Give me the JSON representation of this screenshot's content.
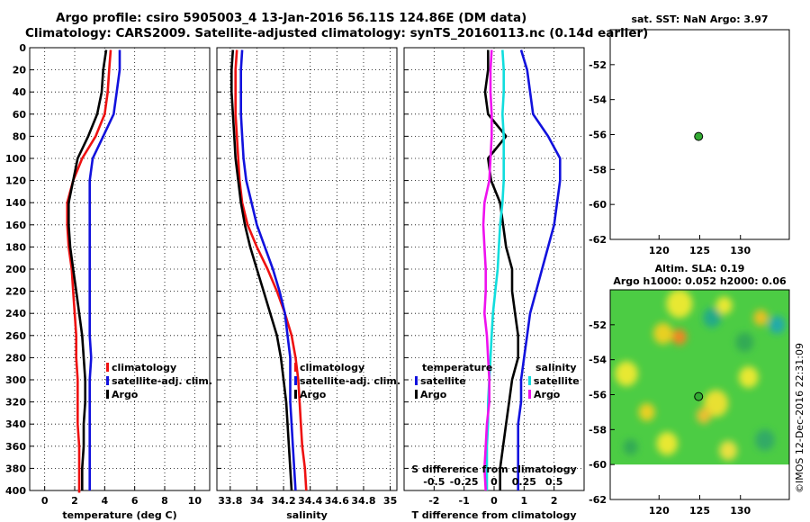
{
  "titles": {
    "line1": "Argo profile: csiro 5905003_4 13-Jan-2016 56.11S 124.86E (DM data)",
    "line2": "Climatology: CARS2009. Satellite-adjusted climatology: synTS_20160113.nc (0.14d earlier)"
  },
  "side_label": "©IMOS 12-Dec-2016 22:31:09",
  "colors": {
    "red": "#ee1111",
    "blue": "#1111dd",
    "black": "#000000",
    "magenta": "#ee11ee",
    "cyan": "#11dddd"
  },
  "chart_data": [
    {
      "type": "line",
      "id": "temperature",
      "xlabel": "temperature (deg C)",
      "ylabel": "",
      "xlim": [
        -1,
        11
      ],
      "ylim": [
        0,
        400
      ],
      "y_inverted": true,
      "xticks": [
        0,
        2,
        4,
        6,
        8,
        10
      ],
      "xtick_labels": [
        "0",
        "2",
        "4",
        "6",
        "8",
        "10"
      ],
      "yticks": [
        0,
        20,
        40,
        60,
        80,
        100,
        120,
        140,
        160,
        180,
        200,
        220,
        240,
        260,
        280,
        300,
        320,
        340,
        360,
        380,
        400
      ],
      "ytick_labels": [
        "0",
        "20",
        "40",
        "60",
        "80",
        "100",
        "120",
        "140",
        "160",
        "180",
        "200",
        "220",
        "240",
        "260",
        "280",
        "300",
        "320",
        "340",
        "360",
        "380",
        "400"
      ],
      "grid": true,
      "legend": [
        "climatology",
        "satellite-adj. clim.",
        "Argo"
      ],
      "series": [
        {
          "name": "climatology",
          "color": "red",
          "x": [
            4.4,
            4.3,
            4.2,
            4.0,
            3.4,
            2.5,
            1.9,
            1.5,
            1.5,
            1.6,
            1.8,
            1.9,
            2.0,
            2.1,
            2.1,
            2.2,
            2.2,
            2.2,
            2.3,
            2.3,
            2.3,
            2.3
          ],
          "y": [
            2,
            20,
            40,
            60,
            80,
            100,
            120,
            140,
            160,
            180,
            200,
            220,
            240,
            260,
            280,
            300,
            320,
            340,
            360,
            380,
            400,
            402
          ]
        },
        {
          "name": "satellite-adj. clim.",
          "color": "blue",
          "x": [
            5.0,
            5.0,
            4.8,
            4.6,
            3.9,
            3.2,
            3.0,
            3.0,
            3.0,
            3.0,
            3.0,
            3.0,
            3.0,
            3.0,
            3.1,
            3.0,
            3.0,
            3.0,
            3.0,
            3.0,
            3.0
          ],
          "y": [
            2,
            20,
            40,
            60,
            80,
            100,
            120,
            140,
            160,
            180,
            200,
            220,
            240,
            260,
            280,
            300,
            320,
            340,
            360,
            380,
            400
          ]
        },
        {
          "name": "Argo",
          "color": "black",
          "x": [
            4.1,
            3.9,
            3.8,
            3.5,
            2.9,
            2.2,
            1.9,
            1.6,
            1.6,
            1.7,
            1.9,
            2.1,
            2.3,
            2.5,
            2.6,
            2.7,
            2.7,
            2.6,
            2.6,
            2.5,
            2.5
          ],
          "y": [
            2,
            20,
            40,
            60,
            80,
            100,
            120,
            140,
            160,
            180,
            200,
            220,
            240,
            260,
            280,
            300,
            320,
            340,
            360,
            380,
            400
          ]
        }
      ]
    },
    {
      "type": "line",
      "id": "salinity",
      "xlabel": "salinity",
      "ylabel": "",
      "xlim": [
        33.7,
        35.05
      ],
      "ylim": [
        0,
        400
      ],
      "y_inverted": true,
      "xticks": [
        33.8,
        34,
        34.2,
        34.4,
        34.6,
        34.8,
        35
      ],
      "xtick_labels": [
        "33.8",
        "34",
        "34.2",
        "34.4",
        "34.6",
        "34.8",
        "35"
      ],
      "grid": true,
      "legend": [
        "climatology",
        "satellite-adj. clim.",
        "Argo"
      ],
      "series": [
        {
          "name": "climatology",
          "color": "red",
          "x": [
            33.85,
            33.84,
            33.84,
            33.84,
            33.85,
            33.86,
            33.87,
            33.89,
            33.93,
            34.0,
            34.08,
            34.15,
            34.21,
            34.26,
            34.29,
            34.31,
            34.32,
            34.33,
            34.34,
            34.36,
            34.37
          ],
          "y": [
            2,
            20,
            40,
            60,
            80,
            100,
            120,
            140,
            160,
            180,
            200,
            220,
            240,
            260,
            280,
            300,
            320,
            340,
            360,
            380,
            400
          ]
        },
        {
          "name": "satellite-adj. clim.",
          "color": "blue",
          "x": [
            33.89,
            33.88,
            33.88,
            33.88,
            33.89,
            33.9,
            33.92,
            33.96,
            34.0,
            34.06,
            34.12,
            34.17,
            34.21,
            34.23,
            34.25,
            34.25,
            34.25,
            34.26,
            34.27,
            34.28,
            34.29
          ],
          "y": [
            2,
            20,
            40,
            60,
            80,
            100,
            120,
            140,
            160,
            180,
            200,
            220,
            240,
            260,
            280,
            300,
            320,
            340,
            360,
            380,
            400
          ]
        },
        {
          "name": "Argo",
          "color": "black",
          "x": [
            33.82,
            33.81,
            33.81,
            33.82,
            33.83,
            33.84,
            33.86,
            33.88,
            33.91,
            33.95,
            34.0,
            34.05,
            34.1,
            34.15,
            34.18,
            34.2,
            34.22,
            34.23,
            34.24,
            34.25,
            34.26
          ],
          "y": [
            2,
            20,
            40,
            60,
            80,
            100,
            120,
            140,
            160,
            180,
            200,
            220,
            240,
            260,
            280,
            300,
            320,
            340,
            360,
            380,
            400
          ]
        }
      ]
    },
    {
      "type": "line",
      "id": "difference",
      "xlabel": "T difference from climatology",
      "top_axis_label": "S difference from climatology",
      "xlim": [
        -3,
        3
      ],
      "ylim": [
        0,
        400
      ],
      "y_inverted": true,
      "xticks": [
        -2,
        -1,
        0,
        1,
        2
      ],
      "xtick_labels": [
        "-2",
        "-1",
        "0",
        "1",
        "2"
      ],
      "s_ticks": [
        -0.5,
        -0.25,
        0,
        0.25,
        0.5
      ],
      "s_tick_labels": [
        "-0.5",
        "-0.25",
        "0",
        "0.25",
        "0.5"
      ],
      "s_xlim": [
        -0.75,
        0.75
      ],
      "grid": true,
      "legend_temperature": {
        "title": "temperature",
        "entries": [
          "satellite",
          "Argo"
        ]
      },
      "legend_salinity": {
        "title": "salinity",
        "entries": [
          "satellite",
          "Argo"
        ]
      },
      "series": [
        {
          "name": "T satellite",
          "color": "blue",
          "x": [
            0.9,
            1.1,
            1.2,
            1.3,
            1.8,
            2.2,
            2.2,
            2.1,
            2.0,
            1.8,
            1.6,
            1.4,
            1.2,
            1.1,
            1.0,
            0.9,
            0.9,
            0.8,
            0.8,
            0.8,
            0.8
          ],
          "y": [
            2,
            20,
            40,
            60,
            80,
            100,
            120,
            140,
            160,
            180,
            200,
            220,
            240,
            260,
            280,
            300,
            320,
            340,
            360,
            380,
            400
          ]
        },
        {
          "name": "T Argo",
          "color": "black",
          "x": [
            -0.2,
            -0.2,
            -0.3,
            -0.2,
            0.4,
            -0.2,
            -0.1,
            0.2,
            0.3,
            0.4,
            0.6,
            0.6,
            0.7,
            0.8,
            0.8,
            0.6,
            0.5,
            0.4,
            0.3,
            0.2,
            0.2
          ],
          "y": [
            2,
            20,
            40,
            60,
            80,
            100,
            120,
            140,
            160,
            180,
            200,
            220,
            240,
            260,
            280,
            300,
            320,
            340,
            360,
            380,
            400
          ]
        },
        {
          "name": "S satellite",
          "color": "cyan",
          "x": [
            0.07,
            0.08,
            0.08,
            0.07,
            0.08,
            0.08,
            0.08,
            0.07,
            0.05,
            0.04,
            0.03,
            0.01,
            -0.01,
            -0.02,
            -0.03,
            -0.04,
            -0.05,
            -0.05,
            -0.06,
            -0.06,
            -0.06
          ],
          "y": [
            2,
            20,
            40,
            60,
            80,
            100,
            120,
            140,
            160,
            180,
            200,
            220,
            240,
            260,
            280,
            300,
            320,
            340,
            360,
            380,
            400
          ]
        },
        {
          "name": "S Argo",
          "color": "magenta",
          "x": [
            -0.02,
            -0.03,
            -0.03,
            -0.02,
            -0.02,
            -0.03,
            -0.04,
            -0.08,
            -0.09,
            -0.08,
            -0.07,
            -0.07,
            -0.08,
            -0.06,
            -0.05,
            -0.04,
            -0.04,
            -0.06,
            -0.07,
            -0.08,
            -0.07
          ],
          "y": [
            2,
            20,
            40,
            60,
            80,
            100,
            120,
            140,
            160,
            180,
            200,
            220,
            240,
            260,
            280,
            300,
            320,
            340,
            360,
            380,
            400
          ]
        }
      ]
    },
    {
      "type": "scatter",
      "id": "sst_map",
      "title": "sat. SST: NaN Argo: 3.97",
      "xlim": [
        114,
        136
      ],
      "ylim": [
        -62,
        -50
      ],
      "xticks": [
        120,
        125,
        130
      ],
      "xtick_labels": [
        "120",
        "125",
        "130"
      ],
      "yticks": [
        -52,
        -54,
        -56,
        -58,
        -60,
        -62
      ],
      "ytick_labels": [
        "-52",
        "-54",
        "-56",
        "-58",
        "-60",
        "-62"
      ],
      "points": [
        {
          "x": 124.86,
          "y": -56.11,
          "color": "#33aa33"
        }
      ]
    },
    {
      "type": "heatmap",
      "id": "sla_map",
      "title1": "Altim. SLA: 0.19",
      "title2": "Argo h1000: 0.052 h2000: 0.06",
      "xlim": [
        114,
        136
      ],
      "ylim": [
        -62,
        -50
      ],
      "data_ylim": [
        -60,
        -50
      ],
      "xticks": [
        120,
        125,
        130
      ],
      "xtick_labels": [
        "120",
        "125",
        "130"
      ],
      "yticks": [
        -52,
        -54,
        -56,
        -58,
        -60,
        -62
      ],
      "ytick_labels": [
        "-52",
        "-54",
        "-56",
        "-58",
        "-60",
        "-62"
      ],
      "base_color": "#4ccc44",
      "blobs": [
        {
          "x": 122.5,
          "y": -50.8,
          "r": 1.6,
          "color": "#e8e830"
        },
        {
          "x": 120.5,
          "y": -52.5,
          "r": 1.2,
          "color": "#e8d020"
        },
        {
          "x": 122.5,
          "y": -52.7,
          "r": 0.9,
          "color": "#ee8822"
        },
        {
          "x": 128.0,
          "y": -50.9,
          "r": 1.0,
          "color": "#e8e830"
        },
        {
          "x": 126.5,
          "y": -51.6,
          "r": 1.1,
          "color": "#22aa88"
        },
        {
          "x": 132.5,
          "y": -51.6,
          "r": 0.9,
          "color": "#e8c020"
        },
        {
          "x": 134.5,
          "y": -52.0,
          "r": 1.0,
          "color": "#22aaaa"
        },
        {
          "x": 116.0,
          "y": -54.8,
          "r": 1.4,
          "color": "#e8e830"
        },
        {
          "x": 118.5,
          "y": -57.0,
          "r": 1.0,
          "color": "#e8d020"
        },
        {
          "x": 127.0,
          "y": -56.5,
          "r": 1.5,
          "color": "#e8e030"
        },
        {
          "x": 125.5,
          "y": -57.2,
          "r": 0.9,
          "color": "#e8c030"
        },
        {
          "x": 131.0,
          "y": -55.0,
          "r": 1.2,
          "color": "#e8e830"
        },
        {
          "x": 130.5,
          "y": -53.0,
          "r": 1.1,
          "color": "#33aa55"
        },
        {
          "x": 133.0,
          "y": -58.6,
          "r": 1.2,
          "color": "#33aa66"
        },
        {
          "x": 121.0,
          "y": -58.8,
          "r": 1.3,
          "color": "#e8e830"
        },
        {
          "x": 128.5,
          "y": -59.2,
          "r": 1.1,
          "color": "#e8e040"
        },
        {
          "x": 116.5,
          "y": -59.0,
          "r": 0.9,
          "color": "#33aa55"
        }
      ],
      "points": [
        {
          "x": 124.86,
          "y": -56.11,
          "color": "#33aa33"
        }
      ]
    }
  ]
}
